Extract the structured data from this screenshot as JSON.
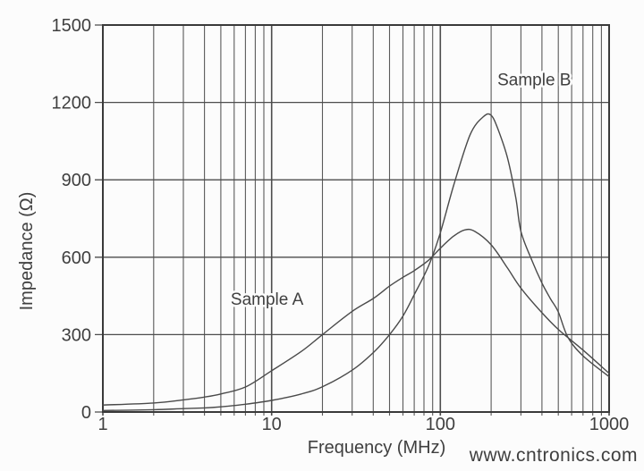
{
  "chart_data": {
    "type": "line",
    "x_scale": "log",
    "title": "",
    "xlabel": "Frequency (MHz)",
    "ylabel": "Impedance (Ω)",
    "xlim": [
      1,
      1000
    ],
    "ylim": [
      0,
      1500
    ],
    "x_ticks": [
      1,
      10,
      100,
      1000
    ],
    "y_ticks": [
      0,
      300,
      600,
      900,
      1200,
      1500
    ],
    "grid": {
      "x_major": true,
      "x_minor": true,
      "y_major": true,
      "y_minor": false
    },
    "series": [
      {
        "name": "Sample A",
        "points": [
          [
            1,
            27
          ],
          [
            2,
            35
          ],
          [
            3,
            47
          ],
          [
            4,
            58
          ],
          [
            5,
            70
          ],
          [
            7,
            97
          ],
          [
            10,
            160
          ],
          [
            15,
            235
          ],
          [
            20,
            300
          ],
          [
            30,
            390
          ],
          [
            40,
            440
          ],
          [
            50,
            488
          ],
          [
            60,
            522
          ],
          [
            70,
            548
          ],
          [
            85,
            588
          ],
          [
            100,
            635
          ],
          [
            120,
            682
          ],
          [
            140,
            706
          ],
          [
            160,
            700
          ],
          [
            200,
            648
          ],
          [
            250,
            558
          ],
          [
            300,
            480
          ],
          [
            400,
            385
          ],
          [
            500,
            320
          ],
          [
            700,
            240
          ],
          [
            1000,
            150
          ]
        ]
      },
      {
        "name": "Sample B",
        "points": [
          [
            1,
            6
          ],
          [
            2,
            9
          ],
          [
            3,
            13
          ],
          [
            4,
            16
          ],
          [
            5,
            20
          ],
          [
            7,
            30
          ],
          [
            10,
            45
          ],
          [
            15,
            70
          ],
          [
            20,
            98
          ],
          [
            30,
            162
          ],
          [
            40,
            230
          ],
          [
            50,
            300
          ],
          [
            60,
            372
          ],
          [
            70,
            455
          ],
          [
            85,
            565
          ],
          [
            100,
            695
          ],
          [
            120,
            880
          ],
          [
            150,
            1075
          ],
          [
            180,
            1145
          ],
          [
            200,
            1150
          ],
          [
            220,
            1095
          ],
          [
            250,
            985
          ],
          [
            280,
            830
          ],
          [
            300,
            700
          ],
          [
            350,
            585
          ],
          [
            400,
            500
          ],
          [
            450,
            438
          ],
          [
            500,
            388
          ],
          [
            570,
            290
          ],
          [
            700,
            218
          ],
          [
            1000,
            137
          ]
        ]
      }
    ],
    "annotations": [
      {
        "text": "Sample A",
        "x_mhz": 9.4,
        "y_ohm": 440
      },
      {
        "text": "Sample B",
        "x_mhz": 360,
        "y_ohm": 1290
      }
    ],
    "legend_position": "none"
  },
  "watermark": {
    "text": "www.cntronics.com",
    "color": "#a8d49e"
  },
  "colors": {
    "background": "#fcfcfc",
    "frame": "#3a3a3a",
    "grid_major": "#4d4d4d",
    "grid_minor": "#5a5a5a",
    "curve": "#4a4a4a",
    "text": "#3f3f3f"
  }
}
